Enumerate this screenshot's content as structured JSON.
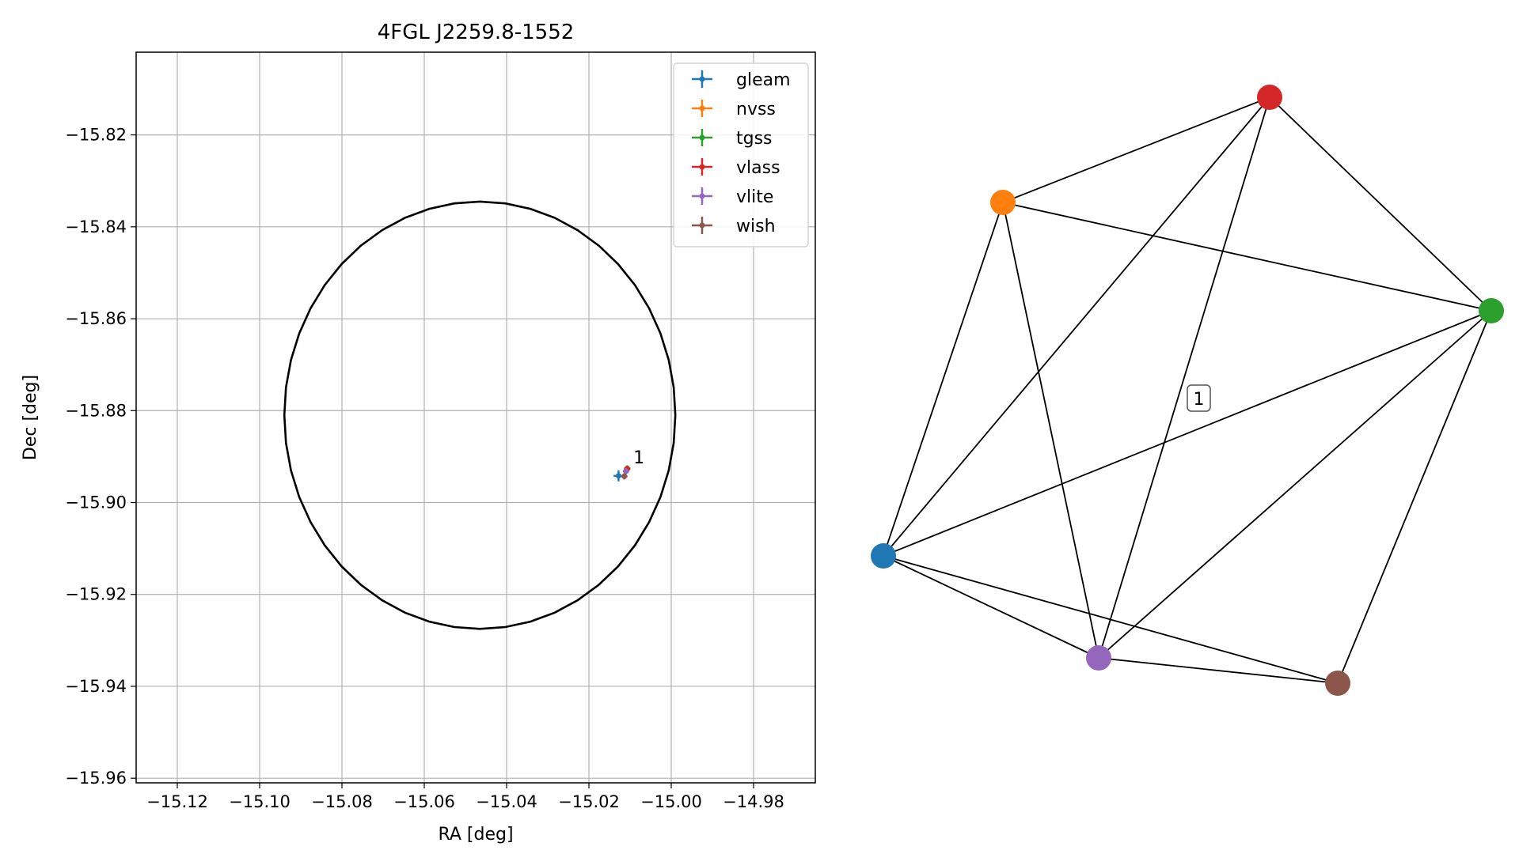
{
  "chart_data": [
    {
      "type": "scatter",
      "title": "4FGL J2259.8-1552",
      "xlabel": "RA [deg]",
      "ylabel": "Dec [deg]",
      "xlim": [
        -15.13,
        -14.965
      ],
      "ylim": [
        -15.961,
        -15.802
      ],
      "xticks": [
        "−15.12",
        "−15.10",
        "−15.08",
        "−15.06",
        "−15.04",
        "−15.02",
        "−15.00",
        "−14.98"
      ],
      "xtick_values": [
        -15.12,
        -15.1,
        -15.08,
        -15.06,
        -15.04,
        -15.02,
        -15.0,
        -14.98
      ],
      "yticks": [
        "−15.82",
        "−15.84",
        "−15.86",
        "−15.88",
        "−15.90",
        "−15.92",
        "−15.94",
        "−15.96"
      ],
      "ytick_values": [
        -15.82,
        -15.84,
        -15.86,
        -15.88,
        -15.9,
        -15.92,
        -15.94,
        -15.96
      ],
      "grid": true,
      "legend_position": "top-right",
      "circle": {
        "center": [
          -15.0465,
          -15.881
        ],
        "radius_ra": 0.0475,
        "radius_dec": 0.0465,
        "color": "#000000"
      },
      "series": [
        {
          "name": "gleam",
          "color": "#1f77b4",
          "x": -15.0128,
          "y": -15.8942,
          "xerr": 0.0012,
          "yerr": 0.0012
        },
        {
          "name": "nvss",
          "color": "#ff7f0e",
          "x": -15.0107,
          "y": -15.8926,
          "xerr": 0.0002,
          "yerr": 0.0002
        },
        {
          "name": "tgss",
          "color": "#2ca02c",
          "x": -15.0107,
          "y": -15.8926,
          "xerr": 0.0003,
          "yerr": 0.0003
        },
        {
          "name": "vlass",
          "color": "#d62728",
          "x": -15.0107,
          "y": -15.8927,
          "xerr": 0.0002,
          "yerr": 0.0002
        },
        {
          "name": "vlite",
          "color": "#9467bd",
          "x": -15.011,
          "y": -15.8932,
          "xerr": 0.0004,
          "yerr": 0.0004
        },
        {
          "name": "wish",
          "color": "#8c564b",
          "x": -15.0114,
          "y": -15.8943,
          "xerr": 0.0003,
          "yerr": 0.0006
        }
      ],
      "annotations": [
        {
          "text": "1",
          "x": -15.0092,
          "y": -15.8915
        }
      ]
    },
    {
      "type": "network",
      "nodes": [
        {
          "name": "gleam",
          "color": "#1f77b4"
        },
        {
          "name": "nvss",
          "color": "#ff7f0e"
        },
        {
          "name": "tgss",
          "color": "#2ca02c"
        },
        {
          "name": "vlass",
          "color": "#d62728"
        },
        {
          "name": "vlite",
          "color": "#9467bd"
        },
        {
          "name": "wish",
          "color": "#8c564b"
        }
      ],
      "edges": [
        [
          "gleam",
          "nvss"
        ],
        [
          "gleam",
          "vlass"
        ],
        [
          "gleam",
          "tgss"
        ],
        [
          "gleam",
          "vlite"
        ],
        [
          "gleam",
          "wish"
        ],
        [
          "nvss",
          "vlass"
        ],
        [
          "nvss",
          "tgss"
        ],
        [
          "nvss",
          "vlite"
        ],
        [
          "vlass",
          "tgss"
        ],
        [
          "vlass",
          "vlite"
        ],
        [
          "tgss",
          "vlite"
        ],
        [
          "tgss",
          "wish"
        ],
        [
          "vlite",
          "wish"
        ]
      ],
      "label": "1"
    }
  ]
}
